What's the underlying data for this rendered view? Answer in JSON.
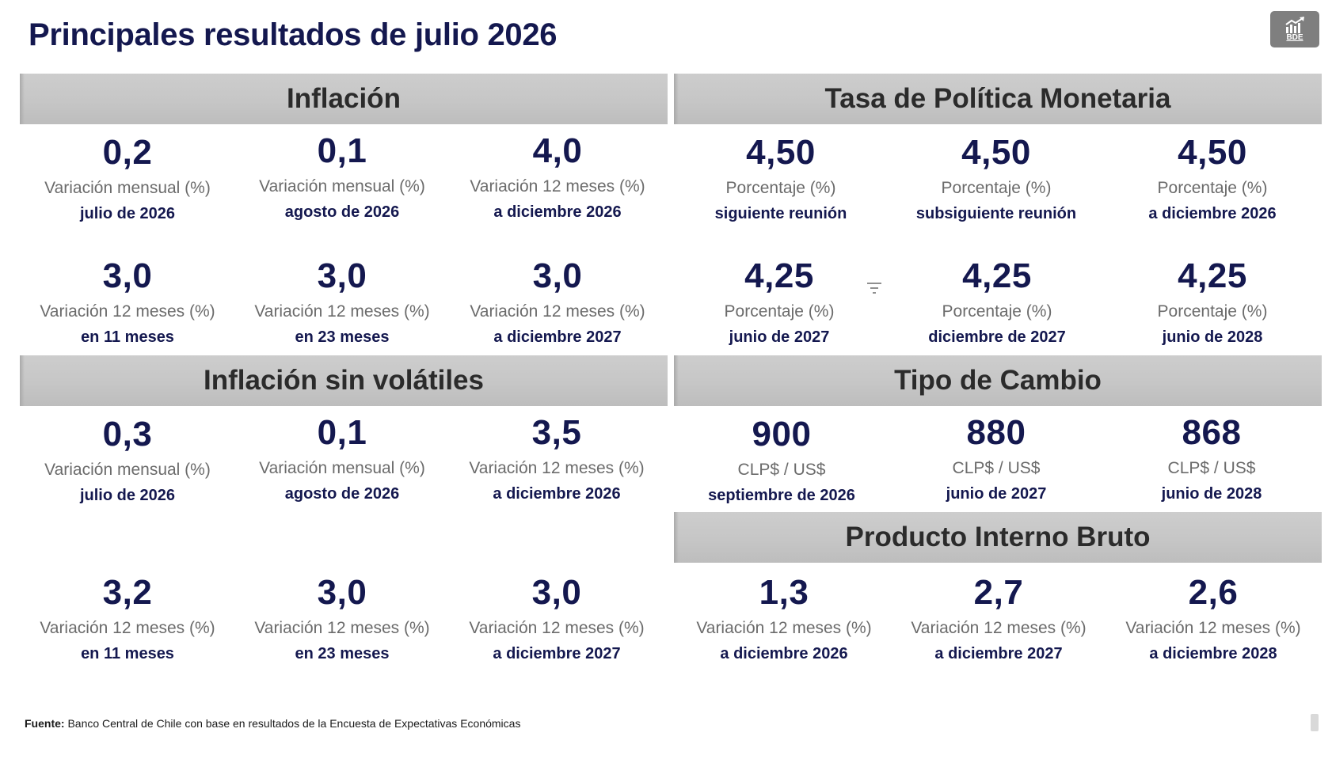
{
  "title": "Principales resultados de julio 2026",
  "logo": {
    "icon": "chart-up-icon",
    "text": "BDE",
    "color": "#7f7f7f"
  },
  "colors": {
    "accent": "#14184f",
    "band": "#c6c6c6",
    "label": "#6b6b6b"
  },
  "sections": {
    "inflacion": {
      "heading": "Inflación",
      "items": [
        {
          "value": "0,2",
          "label": "Variación mensual (%)",
          "period": "julio de 2026"
        },
        {
          "value": "0,1",
          "label": "Variación mensual (%)",
          "period": "agosto de 2026"
        },
        {
          "value": "4,0",
          "label": "Variación 12 meses (%)",
          "period": "a diciembre 2026"
        },
        {
          "value": "3,0",
          "label": "Variación 12 meses (%)",
          "period": "en 11 meses"
        },
        {
          "value": "3,0",
          "label": "Variación 12 meses (%)",
          "period": "en 23 meses"
        },
        {
          "value": "3,0",
          "label": "Variación 12 meses (%)",
          "period": "a diciembre 2027"
        }
      ]
    },
    "tpm": {
      "heading": "Tasa de Política Monetaria",
      "items": [
        {
          "value": "4,50",
          "label": "Porcentaje (%)",
          "period": "siguiente reunión"
        },
        {
          "value": "4,50",
          "label": "Porcentaje (%)",
          "period": "subsiguiente reunión"
        },
        {
          "value": "4,50",
          "label": "Porcentaje (%)",
          "period": "a diciembre 2026"
        },
        {
          "value": "4,25",
          "label": "Porcentaje (%)",
          "period": "junio de 2027"
        },
        {
          "value": "4,25",
          "label": "Porcentaje (%)",
          "period": "diciembre de 2027"
        },
        {
          "value": "4,25",
          "label": "Porcentaje (%)",
          "period": "junio de 2028"
        }
      ]
    },
    "sin_volatiles": {
      "heading": "Inflación sin volátiles",
      "items": [
        {
          "value": "0,3",
          "label": "Variación mensual (%)",
          "period": "julio de 2026"
        },
        {
          "value": "0,1",
          "label": "Variación mensual (%)",
          "period": "agosto de 2026"
        },
        {
          "value": "3,5",
          "label": "Variación 12 meses (%)",
          "period": "a diciembre 2026"
        },
        {
          "value": "3,2",
          "label": "Variación 12 meses (%)",
          "period": "en 11 meses"
        },
        {
          "value": "3,0",
          "label": "Variación 12 meses (%)",
          "period": "en 23 meses"
        },
        {
          "value": "3,0",
          "label": "Variación 12 meses (%)",
          "period": "a diciembre 2027"
        }
      ]
    },
    "tipo_cambio": {
      "heading": "Tipo de Cambio",
      "items": [
        {
          "value": "900",
          "label": "CLP$ / US$",
          "period": "septiembre de 2026"
        },
        {
          "value": "880",
          "label": "CLP$ / US$",
          "period": "junio de 2027"
        },
        {
          "value": "868",
          "label": "CLP$ / US$",
          "period": "junio de 2028"
        }
      ]
    },
    "pib": {
      "heading": "Producto Interno Bruto",
      "items": [
        {
          "value": "1,3",
          "label": "Variación 12 meses (%)",
          "period": "a diciembre 2026"
        },
        {
          "value": "2,7",
          "label": "Variación 12 meses (%)",
          "period": "a diciembre 2027"
        },
        {
          "value": "2,6",
          "label": "Variación 12 meses (%)",
          "period": "a diciembre 2028"
        }
      ]
    }
  },
  "filter_icon": "filter-icon",
  "footer": {
    "source_label": "Fuente:",
    "source_text": " Banco Central de Chile con base en resultados de la Encuesta de Expectativas Económicas"
  }
}
